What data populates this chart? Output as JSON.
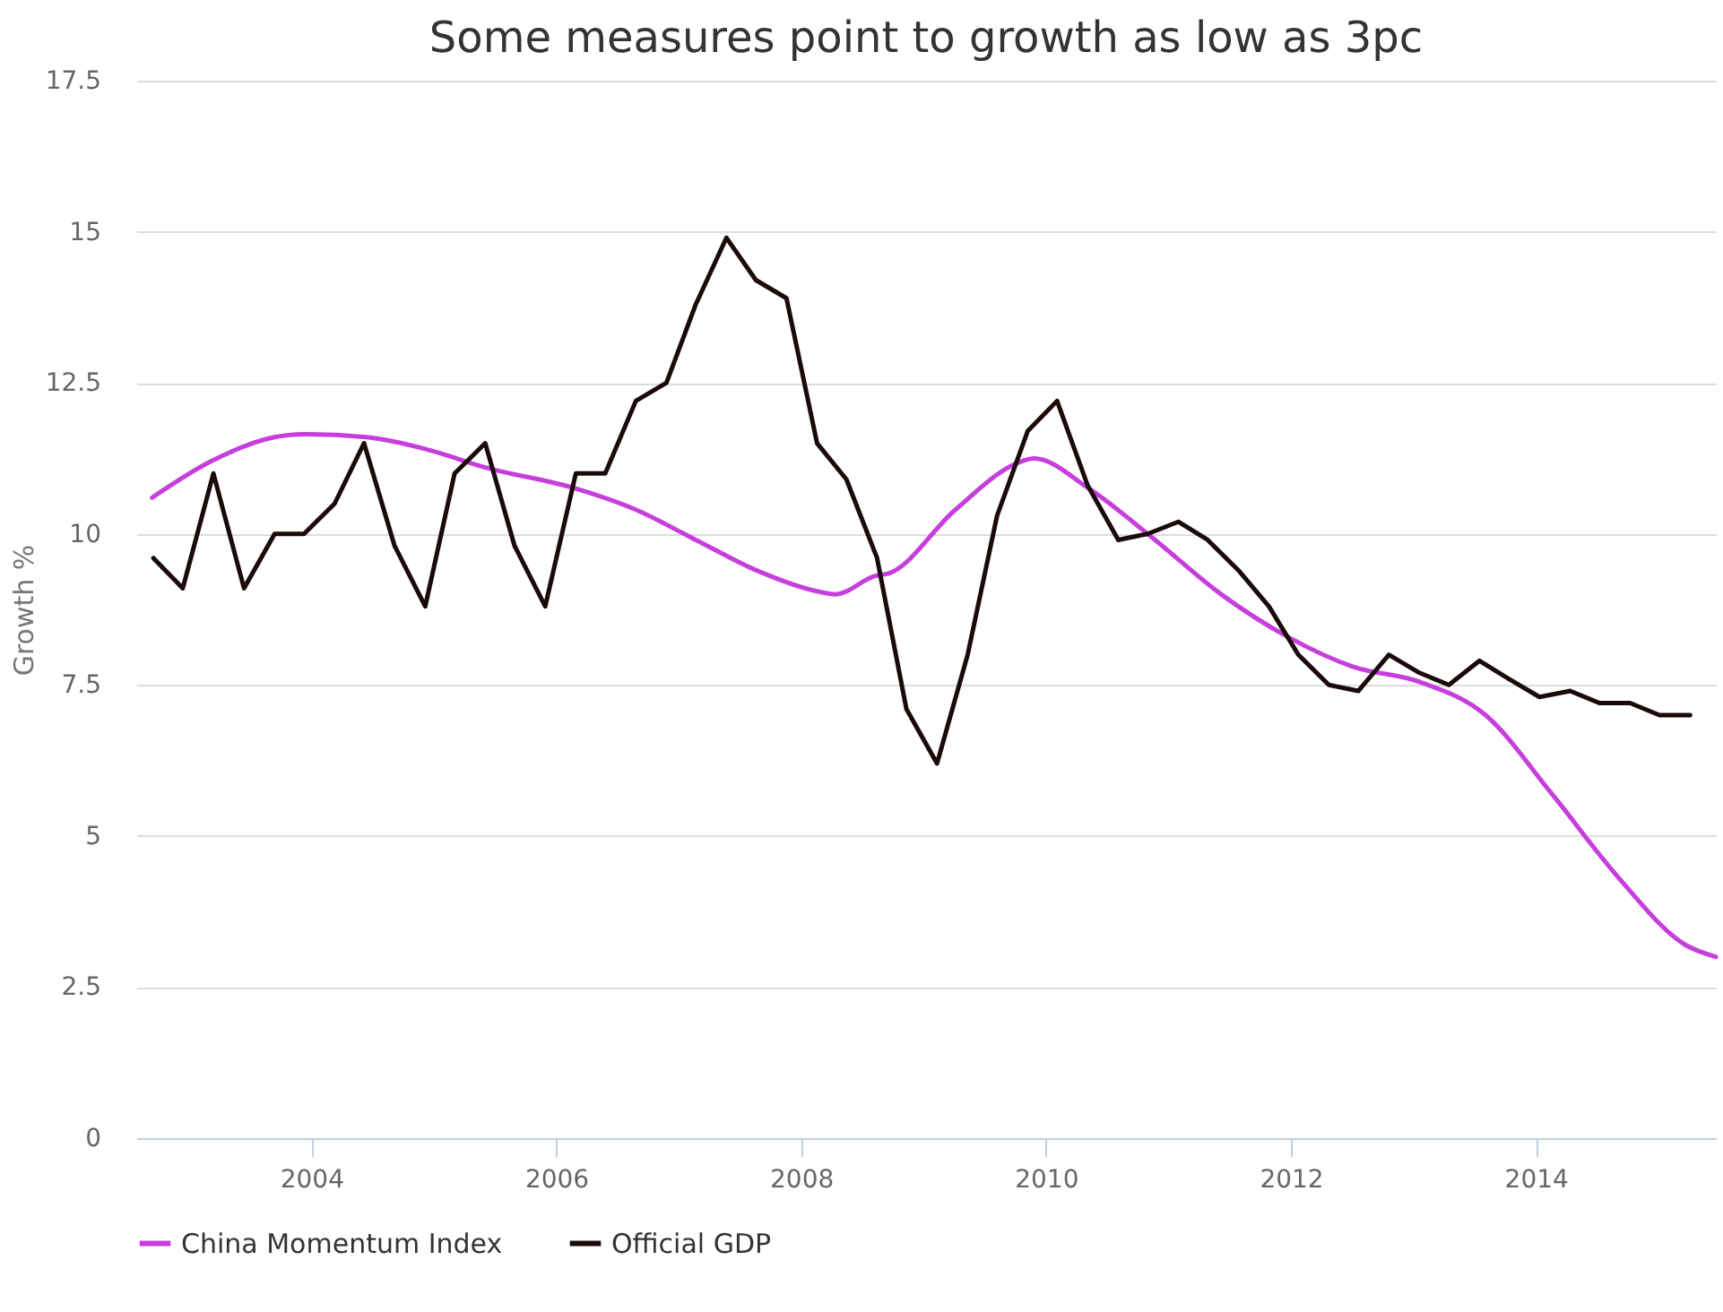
{
  "chart_data": {
    "type": "line",
    "title": "Some measures point to growth as low as 3pc",
    "ylabel": "Growth %",
    "xlim": [
      2002.57,
      2015.47
    ],
    "xticks": [
      2004,
      2006,
      2008,
      2010,
      2012,
      2014
    ],
    "ylim": [
      0,
      17.5
    ],
    "yticks": [
      0,
      2.5,
      5,
      7.5,
      10,
      12.5,
      15,
      17.5
    ],
    "grid": "y",
    "legend": "bottom",
    "marker": "none",
    "line_style": "solid",
    "series": [
      {
        "name": "China Momentum Index",
        "color": "#c63fdc",
        "x": [
          2002.7,
          2003.18,
          2003.7,
          2003.95,
          2004.45,
          2004.94,
          2005.42,
          2006.16,
          2006.65,
          2007.14,
          2007.63,
          2008.13,
          2008.28,
          2008.6,
          2008.72,
          2009.26,
          2009.8,
          2009.9,
          2010.35,
          2010.89,
          2011.43,
          2011.97,
          2012.51,
          2013.05,
          2013.59,
          2014.13,
          2014.68,
          2015.22,
          2015.47
        ],
        "values": [
          10.6,
          11.2,
          11.6,
          11.65,
          11.6,
          11.4,
          11.1,
          10.75,
          10.4,
          9.9,
          9.4,
          9.05,
          9.0,
          9.3,
          9.35,
          10.4,
          11.2,
          11.25,
          10.75,
          9.9,
          9.0,
          8.3,
          7.8,
          7.55,
          7.0,
          5.7,
          4.3,
          3.2,
          3.0
        ]
      },
      {
        "name": "Official GDP",
        "color": "#1a0a0a",
        "x": [
          2002.71,
          2002.95,
          2003.2,
          2003.45,
          2003.7,
          2003.94,
          2004.19,
          2004.43,
          2004.68,
          2004.93,
          2005.17,
          2005.42,
          2005.66,
          2005.91,
          2006.16,
          2006.4,
          2006.65,
          2006.9,
          2007.14,
          2007.39,
          2007.63,
          2007.88,
          2008.13,
          2008.37,
          2008.62,
          2008.86,
          2009.11,
          2009.36,
          2009.6,
          2009.85,
          2010.09,
          2010.34,
          2010.59,
          2010.83,
          2011.08,
          2011.32,
          2011.57,
          2011.82,
          2012.06,
          2012.31,
          2012.55,
          2012.8,
          2013.05,
          2013.29,
          2013.54,
          2013.78,
          2014.03,
          2014.28,
          2014.52,
          2014.77,
          2015.01,
          2015.26
        ],
        "values": [
          9.6,
          9.1,
          11.0,
          9.1,
          10.0,
          10.0,
          10.5,
          11.5,
          9.8,
          8.8,
          11.0,
          11.5,
          9.8,
          8.8,
          11.0,
          11.0,
          12.2,
          12.5,
          13.8,
          14.9,
          14.2,
          13.9,
          11.5,
          10.9,
          9.6,
          7.1,
          6.2,
          8.0,
          10.3,
          11.7,
          12.2,
          10.8,
          9.9,
          10.0,
          10.2,
          9.9,
          9.4,
          8.8,
          8.0,
          7.5,
          7.4,
          8.0,
          7.7,
          7.5,
          7.9,
          7.6,
          7.3,
          7.4,
          7.2,
          7.2,
          7.0,
          7.0
        ]
      }
    ]
  }
}
